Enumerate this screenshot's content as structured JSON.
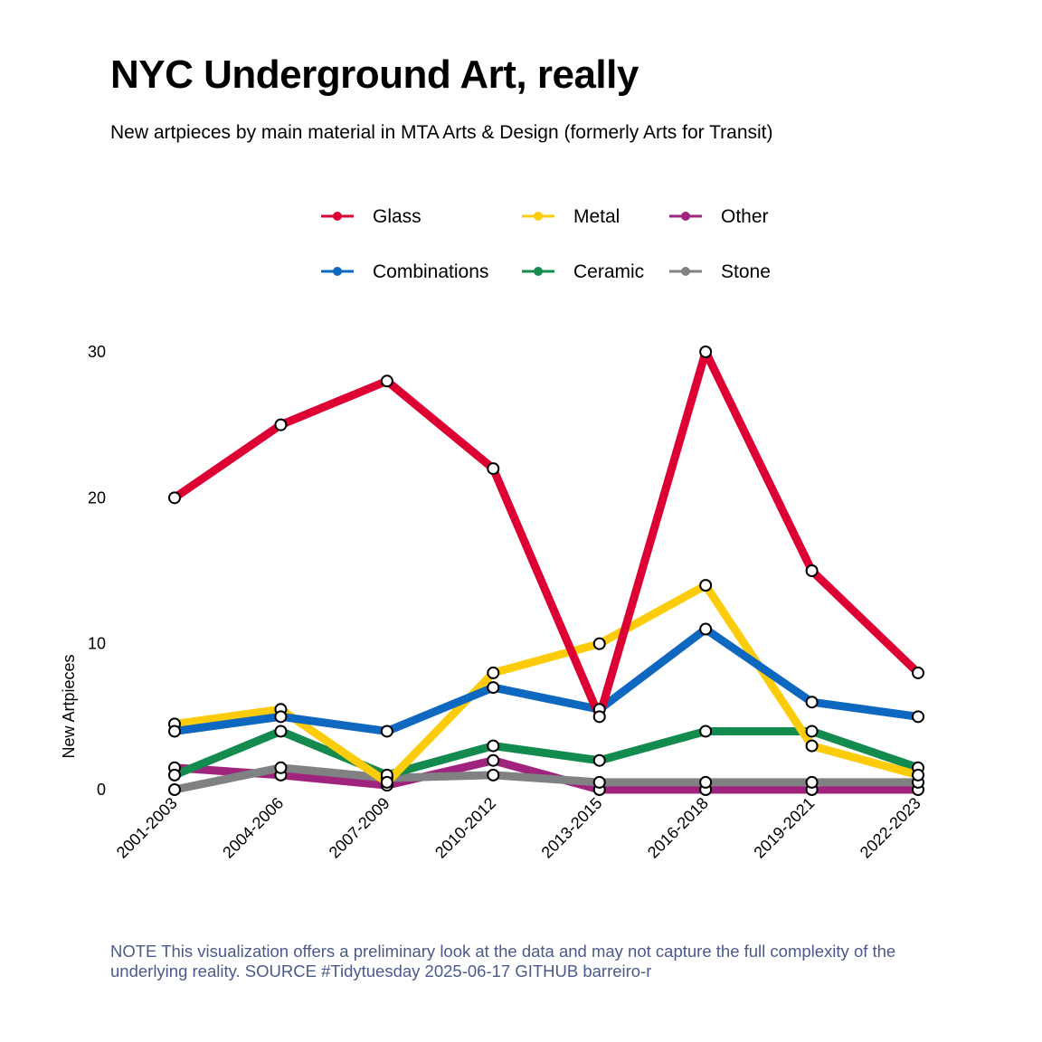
{
  "header": {
    "title": "NYC Underground Art, really",
    "subtitle": "New artpieces by main material in MTA Arts & Design (formerly Arts for Transit)"
  },
  "caption": {
    "note_label": "NOTE",
    "note_text": "This visualization offers a preliminary look at the data and may not capture the full complexity of the underlying reality.",
    "source_label": "SOURCE",
    "source_text": "#Tidytuesday 2025-06-17 GITHUB barreiro-r"
  },
  "chart_data": {
    "type": "line",
    "title": "NYC Underground Art, really",
    "subtitle": "New artpieces by main material in MTA Arts & Design (formerly Arts for Transit)",
    "xlabel": "",
    "ylabel": "New Artpieces",
    "categories": [
      "2001-2003",
      "2004-2006",
      "2007-2009",
      "2010-2012",
      "2013-2015",
      "2016-2018",
      "2019-2021",
      "2022-2023"
    ],
    "ylim": [
      0,
      30
    ],
    "yticks": [
      0,
      10,
      20,
      30
    ],
    "grid": false,
    "legend_position": "top",
    "series": [
      {
        "name": "Other",
        "color": "#A0247E",
        "values": [
          1.5,
          1,
          0.3,
          2,
          0,
          0,
          0,
          0
        ]
      },
      {
        "name": "Stone",
        "color": "#808183",
        "values": [
          0,
          1.5,
          0.8,
          1,
          0.5,
          0.5,
          0.5,
          0.5
        ]
      },
      {
        "name": "Ceramic",
        "color": "#138A4E",
        "values": [
          1,
          4,
          1,
          3,
          2,
          4,
          4,
          1.5
        ]
      },
      {
        "name": "Metal",
        "color": "#FCCC0A",
        "values": [
          4.5,
          5.5,
          0.5,
          8,
          10,
          14,
          3,
          1
        ]
      },
      {
        "name": "Combinations",
        "color": "#0F68BF",
        "values": [
          4,
          5,
          4,
          7,
          5.5,
          11,
          6,
          5
        ]
      },
      {
        "name": "Glass",
        "color": "#DD0033",
        "values": [
          20,
          25,
          28,
          22,
          5,
          30,
          15,
          8
        ]
      }
    ],
    "legend_order": [
      "Glass",
      "Metal",
      "Other",
      "Combinations",
      "Ceramic",
      "Stone"
    ]
  }
}
